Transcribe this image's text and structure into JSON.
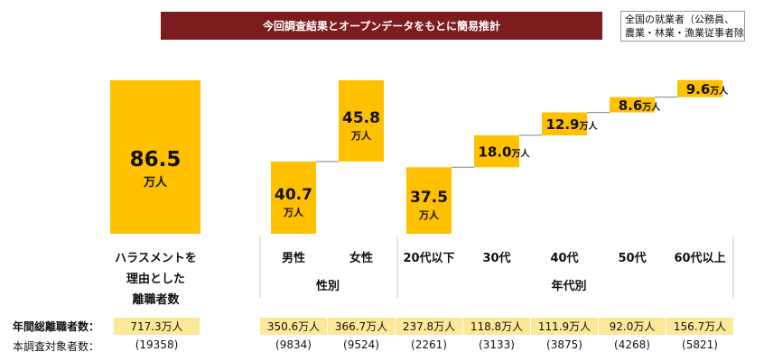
{
  "banner": {
    "title": "今回調査結果とオープンデータをもとに簡易推計"
  },
  "note": {
    "line1": "全国の就業者（公務員、",
    "line2": "農業・林業・漁業従事者除く）"
  },
  "colors": {
    "bar": "#ffc000",
    "banner": "#7c1c1f",
    "cell": "#fde89a",
    "connector": "#808080"
  },
  "row_labels": {
    "total": "年間総離職者数：",
    "sample": "本調査対象者数："
  },
  "groups": {
    "gender": "性別",
    "age": "年代別"
  },
  "main_bar": {
    "category_lines": [
      "ハラスメントを",
      "理由とした",
      "離職者数"
    ],
    "value": "86.5",
    "unit": "万人",
    "total": "717.3万人",
    "sample": "(19358)"
  },
  "chart_data": {
    "type": "bar",
    "title": "今回調査結果とオープンデータをもとに簡易推計",
    "unit": "万人",
    "categories": [
      "ハラスメントを理由とした離職者数",
      "男性",
      "女性",
      "20代以下",
      "30代",
      "40代",
      "50代",
      "60代以上"
    ],
    "values": [
      86.5,
      40.7,
      45.8,
      37.5,
      18.0,
      12.9,
      8.6,
      9.6
    ],
    "groups": [
      {
        "name": "性別",
        "categories": [
          "男性",
          "女性"
        ]
      },
      {
        "name": "年代別",
        "categories": [
          "20代以下",
          "30代",
          "40代",
          "50代",
          "60代以上"
        ]
      }
    ],
    "columns": [
      {
        "label": "男性",
        "value": 40.7,
        "display": "40.7",
        "total": "350.6万人",
        "sample": "(9834)"
      },
      {
        "label": "女性",
        "value": 45.8,
        "display": "45.8",
        "total": "366.7万人",
        "sample": "(9524)"
      },
      {
        "label": "20代以下",
        "value": 37.5,
        "display": "37.5",
        "total": "237.8万人",
        "sample": "(2261)"
      },
      {
        "label": "30代",
        "value": 18.0,
        "display": "18.0",
        "total": "118.8万人",
        "sample": "(3133)"
      },
      {
        "label": "40代",
        "value": 12.9,
        "display": "12.9",
        "total": "111.9万人",
        "sample": "(3875)"
      },
      {
        "label": "50代",
        "value": 8.6,
        "display": "8.6",
        "total": "92.0万人",
        "sample": "(4268)"
      },
      {
        "label": "60代以上",
        "value": 9.6,
        "display": "9.6",
        "total": "156.7万人",
        "sample": "(5821)"
      }
    ]
  }
}
